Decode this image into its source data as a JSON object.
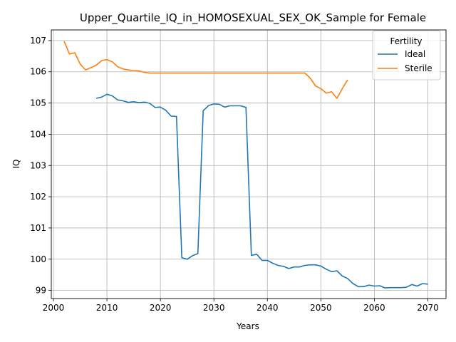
{
  "chart_data": {
    "type": "line",
    "title": "Upper_Quartile_IQ_in_HOMOSEXUAL_SEX_OK_Sample for Female",
    "xlabel": "Years",
    "ylabel": "IQ",
    "xlim": [
      1999.6,
      2073.4
    ],
    "ylim": [
      98.74,
      107.34
    ],
    "xticks": [
      2000,
      2010,
      2020,
      2030,
      2040,
      2050,
      2060,
      2070
    ],
    "yticks": [
      99,
      100,
      101,
      102,
      103,
      104,
      105,
      106,
      107
    ],
    "grid": true,
    "legend": {
      "title": "Fertility",
      "position": "top-right"
    },
    "series": [
      {
        "name": "Ideal",
        "color": "#1f77b4",
        "x": [
          2008,
          2009,
          2010,
          2011,
          2012,
          2013,
          2014,
          2015,
          2016,
          2017,
          2018,
          2019,
          2020,
          2021,
          2022,
          2023,
          2024,
          2025,
          2026,
          2027,
          2028,
          2029,
          2030,
          2031,
          2032,
          2033,
          2034,
          2035,
          2036,
          2037,
          2038,
          2039,
          2040,
          2041,
          2042,
          2043,
          2044,
          2045,
          2046,
          2047,
          2048,
          2049,
          2050,
          2051,
          2052,
          2053,
          2054,
          2055,
          2056,
          2057,
          2058,
          2059,
          2060,
          2061,
          2062,
          2063,
          2064,
          2065,
          2066,
          2067,
          2068,
          2069,
          2070
        ],
        "y": [
          105.15,
          105.19,
          105.28,
          105.23,
          105.1,
          105.07,
          105.02,
          105.04,
          105.01,
          105.03,
          104.99,
          104.86,
          104.87,
          104.77,
          104.58,
          104.57,
          100.05,
          100.0,
          100.11,
          100.18,
          104.75,
          104.92,
          104.97,
          104.96,
          104.87,
          104.91,
          104.91,
          104.91,
          104.86,
          100.12,
          100.16,
          99.96,
          99.96,
          99.87,
          99.8,
          99.77,
          99.7,
          99.75,
          99.75,
          99.8,
          99.82,
          99.82,
          99.78,
          99.68,
          99.6,
          99.63,
          99.46,
          99.38,
          99.22,
          99.12,
          99.12,
          99.17,
          99.14,
          99.15,
          99.08,
          99.09,
          99.09,
          99.09,
          99.1,
          99.19,
          99.14,
          99.22,
          99.2
        ]
      },
      {
        "name": "Sterile",
        "color": "#ff7f0e",
        "x": [
          2002,
          2003,
          2004,
          2005,
          2006,
          2007,
          2008,
          2009,
          2010,
          2011,
          2012,
          2013,
          2014,
          2015,
          2016,
          2017,
          2018,
          2019,
          2020,
          2021,
          2022,
          2023,
          2024,
          2025,
          2026,
          2027,
          2028,
          2029,
          2030,
          2031,
          2032,
          2033,
          2034,
          2035,
          2036,
          2037,
          2038,
          2039,
          2040,
          2041,
          2042,
          2043,
          2044,
          2045,
          2046,
          2047,
          2048,
          2049,
          2050,
          2051,
          2052,
          2053,
          2054,
          2055
        ],
        "y": [
          106.98,
          106.57,
          106.61,
          106.25,
          106.06,
          106.13,
          106.21,
          106.36,
          106.39,
          106.32,
          106.16,
          106.09,
          106.06,
          106.04,
          106.03,
          105.98,
          105.96,
          105.96,
          105.96,
          105.96,
          105.96,
          105.96,
          105.96,
          105.96,
          105.96,
          105.96,
          105.96,
          105.96,
          105.96,
          105.96,
          105.96,
          105.96,
          105.96,
          105.96,
          105.96,
          105.96,
          105.96,
          105.96,
          105.96,
          105.96,
          105.96,
          105.96,
          105.96,
          105.96,
          105.96,
          105.96,
          105.8,
          105.55,
          105.46,
          105.32,
          105.36,
          105.15,
          105.46,
          105.74
        ]
      }
    ]
  }
}
